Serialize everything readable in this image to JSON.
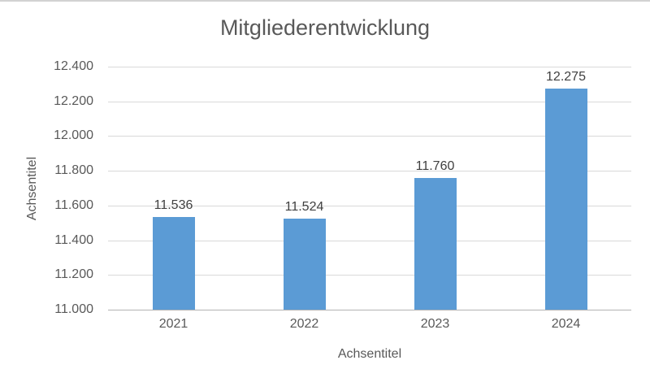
{
  "chart_data": {
    "type": "bar",
    "title": "Mitgliederentwicklung",
    "xlabel": "Achsentitel",
    "ylabel": "Achsentitel",
    "categories": [
      "2021",
      "2022",
      "2023",
      "2024"
    ],
    "values": [
      11536,
      11524,
      11760,
      12275
    ],
    "data_labels": [
      "11.536",
      "11.524",
      "11.760",
      "12.275"
    ],
    "ylim": [
      11000,
      12400
    ],
    "ytick_step": 200,
    "ytick_labels": [
      "11.000",
      "11.200",
      "11.400",
      "11.600",
      "11.800",
      "12.000",
      "12.200",
      "12.400"
    ],
    "grid": true,
    "legend": "none",
    "bar_color": "#5b9bd5",
    "title_color": "#595959",
    "axis_text_color": "#595959",
    "data_label_color": "#404040",
    "gridline_color": "#d9d9d9",
    "axis_line_color": "#b3b3b3",
    "background_color": "#ffffff"
  }
}
